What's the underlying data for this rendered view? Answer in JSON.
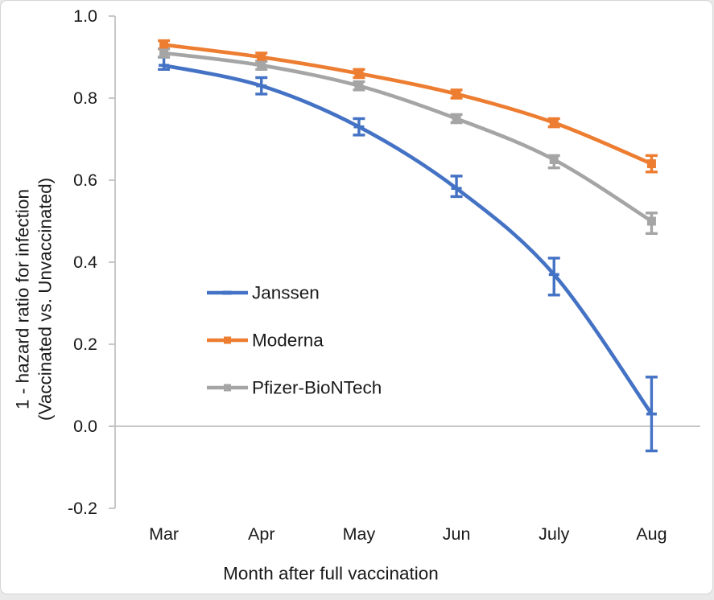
{
  "window": {
    "background": "#ffffff",
    "frame_border_color": "#d5d5d5",
    "outer_strip_color": "#e9e9e9"
  },
  "chart_data": {
    "type": "line",
    "title": "",
    "xlabel": "Month after full vaccination",
    "ylabel_lines": [
      "1 - hazard ratio for infection",
      "(Vaccinated vs. Unvaccinated)"
    ],
    "categories": [
      "Mar",
      "Apr",
      "May",
      "Jun",
      "July",
      "Aug"
    ],
    "ylim": [
      -0.2,
      1.0
    ],
    "ytick_labels": [
      "1.0",
      "0.8",
      "0.6",
      "0.4",
      "0.2",
      "0.0",
      "-0.2"
    ],
    "grid": "single horizontal gridline at y=0.0 only; vertical y-axis line with outside tick marks; no bottom axis line",
    "gridline_value": 0.0,
    "smoothed_lines": true,
    "error_bars": "vertical with caps, per point",
    "legend": {
      "position": "inside plot area, left-center",
      "entries": [
        "Janssen",
        "Moderna",
        "Pfizer-BioNTech"
      ]
    },
    "series": [
      {
        "name": "Janssen",
        "color": "#4472C4",
        "marker": "dash",
        "values": [
          0.88,
          0.83,
          0.73,
          0.58,
          0.37,
          0.03
        ],
        "err_lo": [
          0.87,
          0.81,
          0.71,
          0.56,
          0.32,
          -0.06
        ],
        "err_hi": [
          0.9,
          0.85,
          0.75,
          0.61,
          0.41,
          0.12
        ]
      },
      {
        "name": "Moderna",
        "color": "#ED7D31",
        "marker": "square",
        "values": [
          0.93,
          0.9,
          0.86,
          0.81,
          0.74,
          0.64
        ],
        "err_lo": [
          0.92,
          0.89,
          0.85,
          0.8,
          0.73,
          0.62
        ],
        "err_hi": [
          0.94,
          0.91,
          0.87,
          0.82,
          0.75,
          0.66
        ]
      },
      {
        "name": "Pfizer-BioNTech",
        "color": "#A5A5A5",
        "marker": "square",
        "values": [
          0.91,
          0.88,
          0.83,
          0.75,
          0.65,
          0.5
        ],
        "err_lo": [
          0.9,
          0.87,
          0.82,
          0.74,
          0.63,
          0.47
        ],
        "err_hi": [
          0.92,
          0.89,
          0.84,
          0.76,
          0.66,
          0.52
        ]
      }
    ]
  },
  "colors": {
    "janssen_blue": "#4472C4",
    "moderna_orange": "#ED7D31",
    "pfizer_gray": "#A5A5A5",
    "axis_gray": "#BFBFBF",
    "text": "#1a1a1a"
  }
}
